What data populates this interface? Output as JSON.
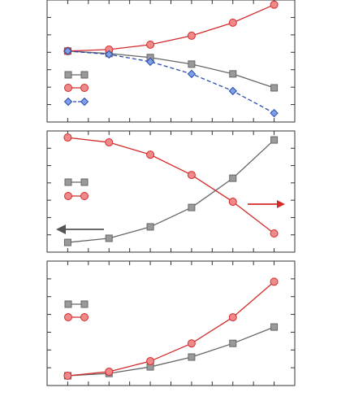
{
  "chart_data": [
    {
      "type": "line",
      "x": [
        0,
        1,
        2,
        3,
        4,
        5
      ],
      "xlim": [
        -0.5,
        5.5
      ],
      "xticks": [
        0,
        0.5,
        1,
        1.5,
        2,
        2.5,
        3,
        3.5,
        4,
        4.5,
        5
      ],
      "ylim": [
        0,
        7
      ],
      "yticks": [
        1,
        2,
        3,
        4,
        5,
        6,
        7
      ],
      "series": [
        {
          "color": "#666666",
          "marker": "square",
          "dashed": false,
          "values": [
            4.07,
            3.93,
            3.7,
            3.32,
            2.76,
            1.96
          ]
        },
        {
          "color": "#d42a2a",
          "marker": "circle",
          "dashed": false,
          "values": [
            4.07,
            4.16,
            4.44,
            4.95,
            5.7,
            6.73
          ]
        },
        {
          "color": "#2a4db0",
          "marker": "diamond",
          "dashed": true,
          "values": [
            4.07,
            3.88,
            3.46,
            2.76,
            1.78,
            0.51
          ]
        }
      ]
    },
    {
      "type": "line",
      "x": [
        0,
        1,
        2,
        3,
        4,
        5
      ],
      "xlim": [
        -0.5,
        5.5
      ],
      "xticks": [
        0,
        0.5,
        1,
        1.5,
        2,
        2.5,
        3,
        3.5,
        4,
        4.5,
        5
      ],
      "ylim": [
        0,
        7
      ],
      "yticks": [
        1,
        2,
        3,
        4,
        5,
        6
      ],
      "series": [
        {
          "color": "#666666",
          "marker": "square",
          "dashed": false,
          "values": [
            0.56,
            0.8,
            1.46,
            2.58,
            4.27,
            6.48
          ]
        },
        {
          "color": "#d42a2a",
          "marker": "circle",
          "dashed": false,
          "values": [
            6.62,
            6.34,
            5.63,
            4.46,
            2.91,
            1.08
          ]
        }
      ]
    },
    {
      "type": "line",
      "x": [
        0,
        1,
        2,
        3,
        4,
        5
      ],
      "xlim": [
        -0.5,
        5.5
      ],
      "xticks": [
        0,
        0.5,
        1,
        1.5,
        2,
        2.5,
        3,
        3.5,
        4,
        4.5,
        5
      ],
      "ylim": [
        0,
        7
      ],
      "yticks": [
        1,
        2,
        3,
        4,
        5,
        6
      ],
      "series": [
        {
          "color": "#666666",
          "marker": "square",
          "dashed": false,
          "values": [
            0.55,
            0.68,
            1.05,
            1.6,
            2.37,
            3.29
          ]
        },
        {
          "color": "#d42a2a",
          "marker": "circle",
          "dashed": false,
          "values": [
            0.55,
            0.78,
            1.37,
            2.37,
            3.84,
            5.84
          ]
        }
      ]
    }
  ]
}
